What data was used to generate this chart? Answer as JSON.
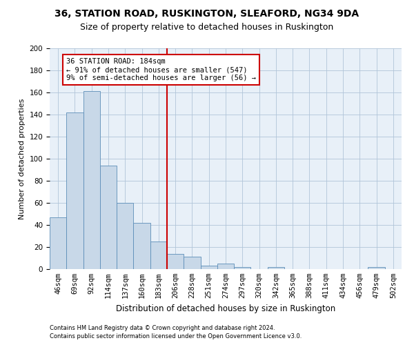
{
  "title1": "36, STATION ROAD, RUSKINGTON, SLEAFORD, NG34 9DA",
  "title2": "Size of property relative to detached houses in Ruskington",
  "xlabel": "Distribution of detached houses by size in Ruskington",
  "ylabel": "Number of detached properties",
  "categories": [
    "46sqm",
    "69sqm",
    "92sqm",
    "114sqm",
    "137sqm",
    "160sqm",
    "183sqm",
    "206sqm",
    "228sqm",
    "251sqm",
    "274sqm",
    "297sqm",
    "320sqm",
    "342sqm",
    "365sqm",
    "388sqm",
    "411sqm",
    "434sqm",
    "456sqm",
    "479sqm",
    "502sqm"
  ],
  "values": [
    47,
    142,
    161,
    94,
    60,
    42,
    25,
    14,
    11,
    3,
    5,
    2,
    0,
    2,
    0,
    0,
    0,
    0,
    0,
    2,
    0
  ],
  "bar_color": "#c8d8e8",
  "bar_edge_color": "#5b8db8",
  "vline_x_idx": 6,
  "vline_color": "#cc0000",
  "annotation_lines": [
    "36 STATION ROAD: 184sqm",
    "← 91% of detached houses are smaller (547)",
    "9% of semi-detached houses are larger (56) →"
  ],
  "annotation_box_color": "#cc0000",
  "ylim": [
    0,
    200
  ],
  "yticks": [
    0,
    20,
    40,
    60,
    80,
    100,
    120,
    140,
    160,
    180,
    200
  ],
  "grid_color": "#b0c4d8",
  "bg_color": "#e8f0f8",
  "footer1": "Contains HM Land Registry data © Crown copyright and database right 2024.",
  "footer2": "Contains public sector information licensed under the Open Government Licence v3.0.",
  "title1_fontsize": 10,
  "title2_fontsize": 9,
  "xlabel_fontsize": 8.5,
  "ylabel_fontsize": 8,
  "tick_fontsize": 7.5,
  "annotation_fontsize": 7.5,
  "footer_fontsize": 6
}
